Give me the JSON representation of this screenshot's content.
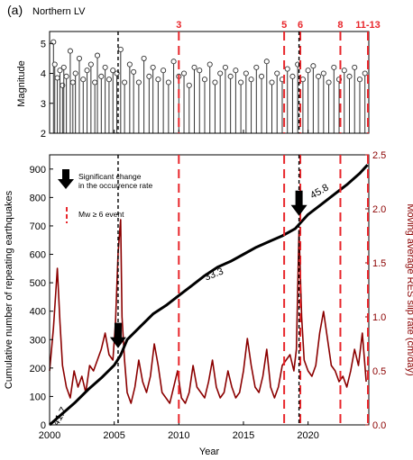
{
  "panel": {
    "label": "(a)",
    "region": "Northern LV"
  },
  "colors": {
    "stems": "#333333",
    "cumulative": "#000000",
    "slip": "#8b0000",
    "events": "#e8262b",
    "axis": "#000000"
  },
  "chart_data": [
    {
      "type": "scatter",
      "title": "",
      "xlabel": "",
      "ylabel": "Magnitude",
      "xlim": [
        2000,
        2024.7
      ],
      "ylim": [
        2,
        5.4
      ],
      "ytick_labels": [
        "2",
        "3",
        "4",
        "5"
      ],
      "series": [
        {
          "style": "stem with open circles",
          "x": [
            2000.3,
            2000.4,
            2000.6,
            2000.8,
            2001.0,
            2001.1,
            2001.3,
            2001.6,
            2001.8,
            2002.0,
            2002.3,
            2002.6,
            2002.9,
            2003.2,
            2003.5,
            2003.7,
            2004.0,
            2004.3,
            2004.6,
            2004.9,
            2005.2,
            2005.5,
            2005.8,
            2006.2,
            2006.5,
            2006.9,
            2007.3,
            2007.7,
            2008.0,
            2008.4,
            2008.8,
            2009.2,
            2009.6,
            2010.0,
            2010.4,
            2010.8,
            2011.2,
            2011.6,
            2012.0,
            2012.4,
            2012.8,
            2013.2,
            2013.6,
            2014.0,
            2014.4,
            2014.8,
            2015.2,
            2015.6,
            2016.0,
            2016.4,
            2016.8,
            2017.2,
            2017.6,
            2018.0,
            2018.4,
            2018.8,
            2019.2,
            2019.6,
            2020.0,
            2020.4,
            2020.8,
            2021.2,
            2021.6,
            2022.0,
            2022.4,
            2022.8,
            2023.2,
            2023.6,
            2024.0,
            2024.4
          ],
          "y": [
            5.05,
            4.3,
            3.85,
            4.1,
            3.6,
            4.2,
            3.9,
            4.75,
            3.7,
            4.0,
            4.5,
            3.8,
            4.1,
            4.3,
            3.7,
            4.6,
            3.9,
            4.2,
            3.8,
            4.1,
            4.0,
            4.8,
            3.7,
            4.3,
            4.05,
            3.7,
            4.5,
            3.9,
            4.2,
            3.8,
            4.1,
            3.7,
            4.4,
            3.9,
            4.0,
            3.6,
            4.2,
            4.1,
            3.8,
            4.3,
            3.7,
            4.0,
            4.2,
            3.9,
            4.1,
            3.7,
            4.0,
            3.8,
            4.2,
            3.9,
            4.4,
            3.7,
            4.0,
            3.8,
            4.15,
            3.9,
            4.3,
            3.8,
            4.1,
            4.25,
            3.9,
            4.0,
            3.7,
            4.2,
            3.8,
            4.1,
            3.9,
            4.2,
            3.8,
            4.0
          ]
        }
      ]
    },
    {
      "type": "line",
      "title": "",
      "xlabel": "Year",
      "ylabel": "Cumulative number of repeating earthquakes",
      "y2label": "Moving average RES slip rate (cm/day)",
      "xlim": [
        2000,
        2024.7
      ],
      "ylim": [
        0,
        950
      ],
      "y2lim": [
        0,
        2.5
      ],
      "xtick_labels": [
        "2000",
        "2005",
        "2010",
        "2015",
        "2020"
      ],
      "ytick_labels": [
        "0",
        "100",
        "200",
        "300",
        "400",
        "500",
        "600",
        "700",
        "800",
        "900"
      ],
      "y2tick_labels": [
        "0.0",
        "0.5",
        "1.0",
        "1.5",
        "2.0",
        "2.5"
      ],
      "series": [
        {
          "axis": "left",
          "x": [
            2000.0,
            2001.0,
            2002.0,
            2003.0,
            2004.0,
            2005.0,
            2005.5,
            2006.0,
            2007.0,
            2008.0,
            2009.0,
            2010.0,
            2011.0,
            2012.0,
            2013.0,
            2014.0,
            2015.0,
            2016.0,
            2017.0,
            2018.0,
            2019.0,
            2019.4,
            2020.0,
            2021.0,
            2022.0,
            2023.0,
            2024.0,
            2024.6
          ],
          "y": [
            0,
            40,
            80,
            125,
            165,
            210,
            245,
            300,
            345,
            390,
            420,
            455,
            490,
            525,
            555,
            575,
            600,
            625,
            645,
            665,
            690,
            710,
            740,
            775,
            810,
            845,
            885,
            915
          ]
        },
        {
          "axis": "right",
          "x": [
            2000.0,
            2000.3,
            2000.6,
            2000.8,
            2001.0,
            2001.3,
            2001.6,
            2001.9,
            2002.2,
            2002.5,
            2002.8,
            2003.1,
            2003.4,
            2003.7,
            2004.0,
            2004.3,
            2004.6,
            2004.9,
            2005.1,
            2005.3,
            2005.5,
            2005.6,
            2005.8,
            2006.0,
            2006.3,
            2006.6,
            2006.9,
            2007.2,
            2007.5,
            2007.8,
            2008.1,
            2008.4,
            2008.7,
            2009.0,
            2009.3,
            2009.6,
            2009.9,
            2010.2,
            2010.5,
            2010.8,
            2011.1,
            2011.4,
            2011.7,
            2012.0,
            2012.3,
            2012.6,
            2012.9,
            2013.2,
            2013.5,
            2013.8,
            2014.1,
            2014.4,
            2014.7,
            2015.0,
            2015.3,
            2015.6,
            2015.9,
            2016.2,
            2016.5,
            2016.8,
            2017.1,
            2017.4,
            2017.7,
            2018.0,
            2018.3,
            2018.6,
            2018.9,
            2019.1,
            2019.3,
            2019.5,
            2019.7,
            2020.0,
            2020.3,
            2020.6,
            2020.9,
            2021.2,
            2021.5,
            2021.8,
            2022.1,
            2022.4,
            2022.7,
            2023.0,
            2023.3,
            2023.6,
            2023.9,
            2024.2,
            2024.5
          ],
          "y": [
            0.5,
            0.9,
            1.45,
            0.95,
            0.55,
            0.35,
            0.25,
            0.5,
            0.35,
            0.45,
            0.3,
            0.55,
            0.5,
            0.6,
            0.7,
            0.85,
            0.65,
            0.6,
            0.95,
            1.6,
            1.9,
            1.0,
            0.6,
            0.3,
            0.2,
            0.35,
            0.6,
            0.4,
            0.3,
            0.45,
            0.75,
            0.55,
            0.3,
            0.25,
            0.2,
            0.35,
            0.5,
            0.25,
            0.2,
            0.3,
            0.55,
            0.35,
            0.3,
            0.25,
            0.4,
            0.6,
            0.35,
            0.25,
            0.3,
            0.5,
            0.35,
            0.25,
            0.3,
            0.5,
            0.8,
            0.55,
            0.35,
            0.3,
            0.45,
            0.7,
            0.35,
            0.25,
            0.35,
            0.55,
            0.6,
            0.65,
            0.5,
            0.7,
            1.8,
            1.0,
            0.6,
            0.5,
            0.45,
            0.55,
            0.85,
            1.05,
            0.8,
            0.55,
            0.5,
            0.4,
            0.45,
            0.35,
            0.5,
            0.7,
            0.55,
            0.85,
            0.4
          ]
        }
      ],
      "trend_slopes": [
        "41.7",
        "33.3",
        "45.8"
      ],
      "significant_changes_x": [
        2005.3,
        2019.3
      ],
      "legend": {
        "placement": "top-left",
        "arrow_label": "Significant change in the occurrence rate",
        "dash_label": "Mw ≥ 6 event"
      }
    }
  ],
  "events": [
    {
      "label": "3",
      "x": 2010.0
    },
    {
      "label": "5",
      "x": 2018.15
    },
    {
      "label": "6",
      "x": 2019.4
    },
    {
      "label": "8",
      "x": 2022.5
    },
    {
      "label": "11-13",
      "x": 2024.65
    }
  ]
}
